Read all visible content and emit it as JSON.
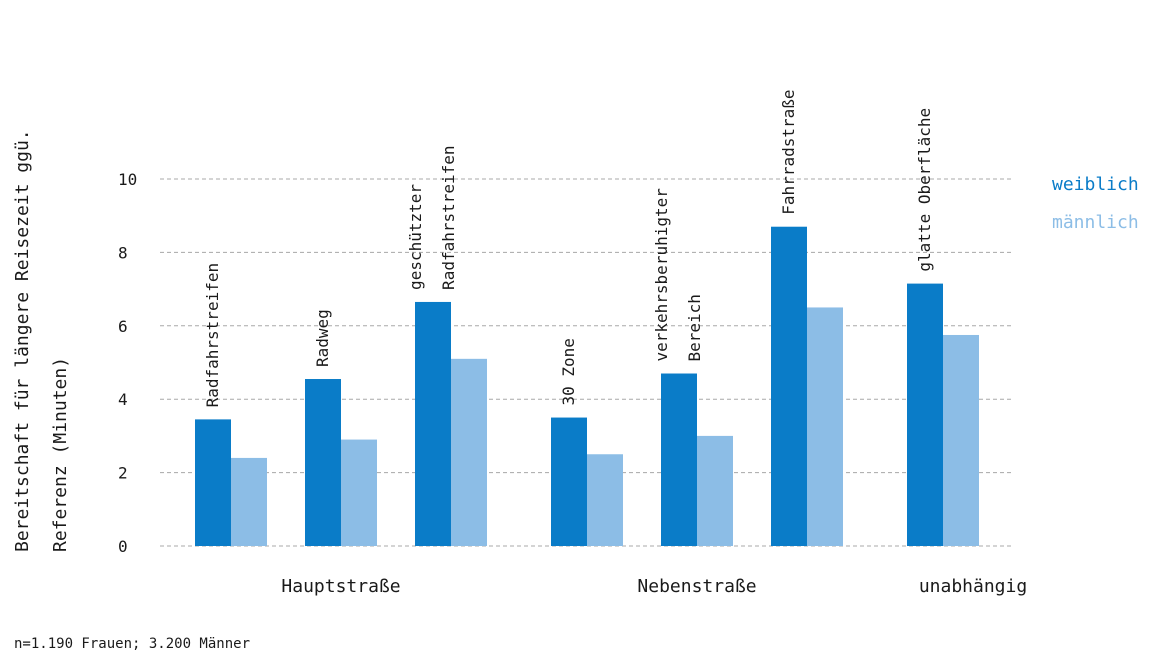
{
  "chart_data": {
    "type": "bar",
    "ylabel_lines": [
      "Bereitschaft für längere Reisezeit ggü.",
      "Referenz (Minuten)"
    ],
    "ylim": [
      0,
      10
    ],
    "yticks": [
      0,
      2,
      4,
      6,
      8,
      10
    ],
    "grid": true,
    "legend_position": "right",
    "categories": [
      {
        "label": [
          "Radfahrstreifen"
        ],
        "group": "Hauptstraße"
      },
      {
        "label": [
          "Radweg"
        ],
        "group": "Hauptstraße"
      },
      {
        "label": [
          "geschützter",
          "Radfahrstreifen"
        ],
        "group": "Hauptstraße"
      },
      {
        "label": [
          "30 Zone"
        ],
        "group": "Nebenstraße"
      },
      {
        "label": [
          "verkehrsberuhigter",
          "Bereich"
        ],
        "group": "Nebenstraße"
      },
      {
        "label": [
          "Fahrradstraße"
        ],
        "group": "Nebenstraße"
      },
      {
        "label": [
          "glatte Oberfläche"
        ],
        "group": "unabhängig"
      }
    ],
    "groups": [
      "Hauptstraße",
      "Nebenstraße",
      "unabhängig"
    ],
    "series": [
      {
        "name": "weiblich",
        "color": "#0a7cc8",
        "values": [
          3.45,
          4.55,
          6.65,
          3.5,
          4.7,
          8.7,
          7.15
        ]
      },
      {
        "name": "männlich",
        "color": "#8cbde6",
        "values": [
          2.4,
          2.9,
          5.1,
          2.5,
          3.0,
          6.5,
          5.75
        ]
      }
    ]
  },
  "footnote": "n=1.190 Frauen; 3.200 Männer"
}
